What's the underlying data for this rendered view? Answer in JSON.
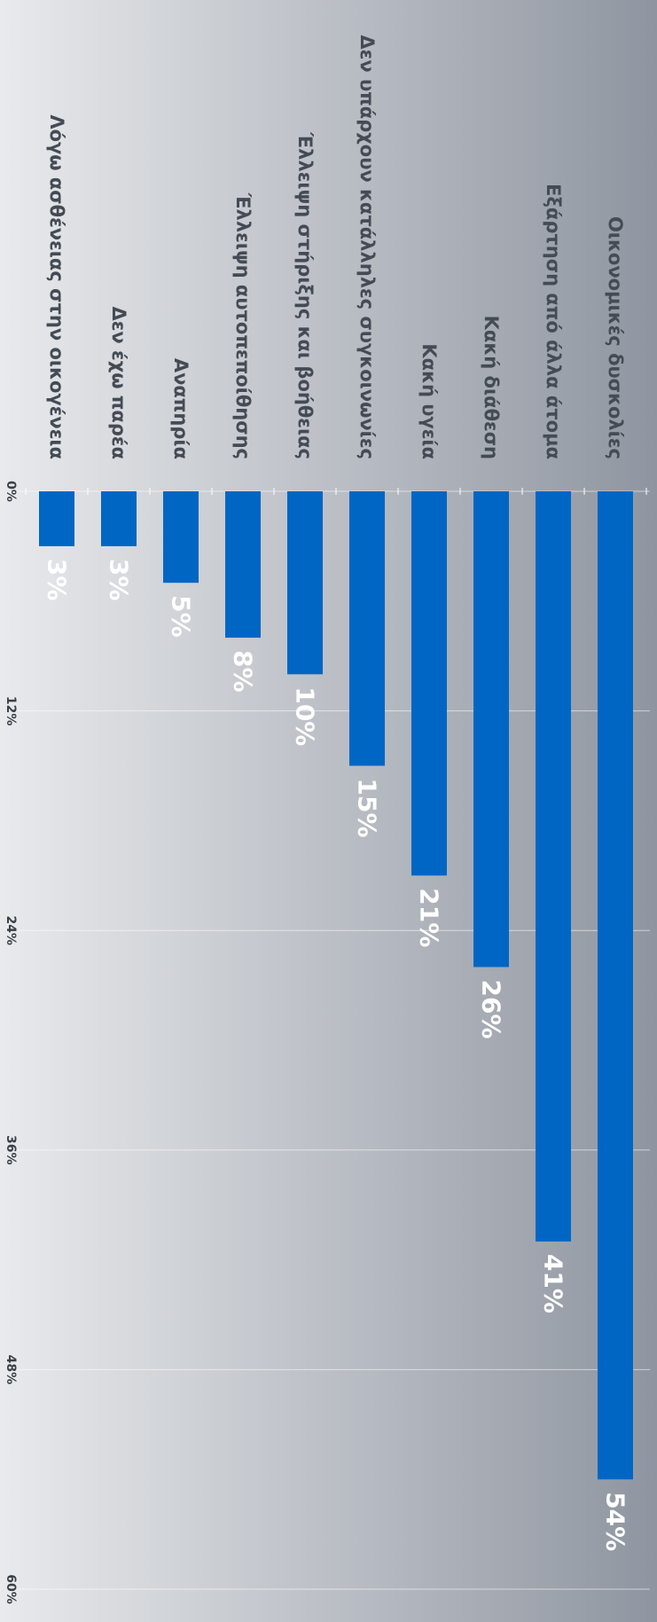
{
  "chart_data": {
    "type": "bar",
    "orientation": "horizontal",
    "categories": [
      "Οικονομικές δυσκολίες",
      "Εξάρτηση από άλλα άτομα",
      "Κακή διάθεση",
      "Κακή υγεία",
      "Δεν υπάρχουν κατάλληλες συγκοινωνίες",
      "Έλλειψη στήριξης και βοήθειας",
      "Έλλειψη αυτοπεποίθησης",
      "Αναπηρία",
      "Δεν έχω παρέα",
      "Λόγω ασθένειας στην οικογένεια"
    ],
    "values": [
      54,
      41,
      26,
      21,
      15,
      10,
      8,
      5,
      3,
      3
    ],
    "value_labels": [
      "54%",
      "41%",
      "26%",
      "21%",
      "15%",
      "10%",
      "8%",
      "5%",
      "3%",
      "3%"
    ],
    "ticks": [
      0,
      12,
      24,
      36,
      48,
      60
    ],
    "tick_labels": [
      "0%",
      "12%",
      "24%",
      "36%",
      "48%",
      "60%"
    ],
    "xlim": [
      0,
      60
    ],
    "grid": true,
    "bar_color": "#0066c4",
    "background_gradient": [
      "#e8eaec",
      "#8f95a0"
    ],
    "category_label_color": "#454b55",
    "value_label_color": "#ffffff",
    "tick_label_color": "#3a3f48"
  }
}
